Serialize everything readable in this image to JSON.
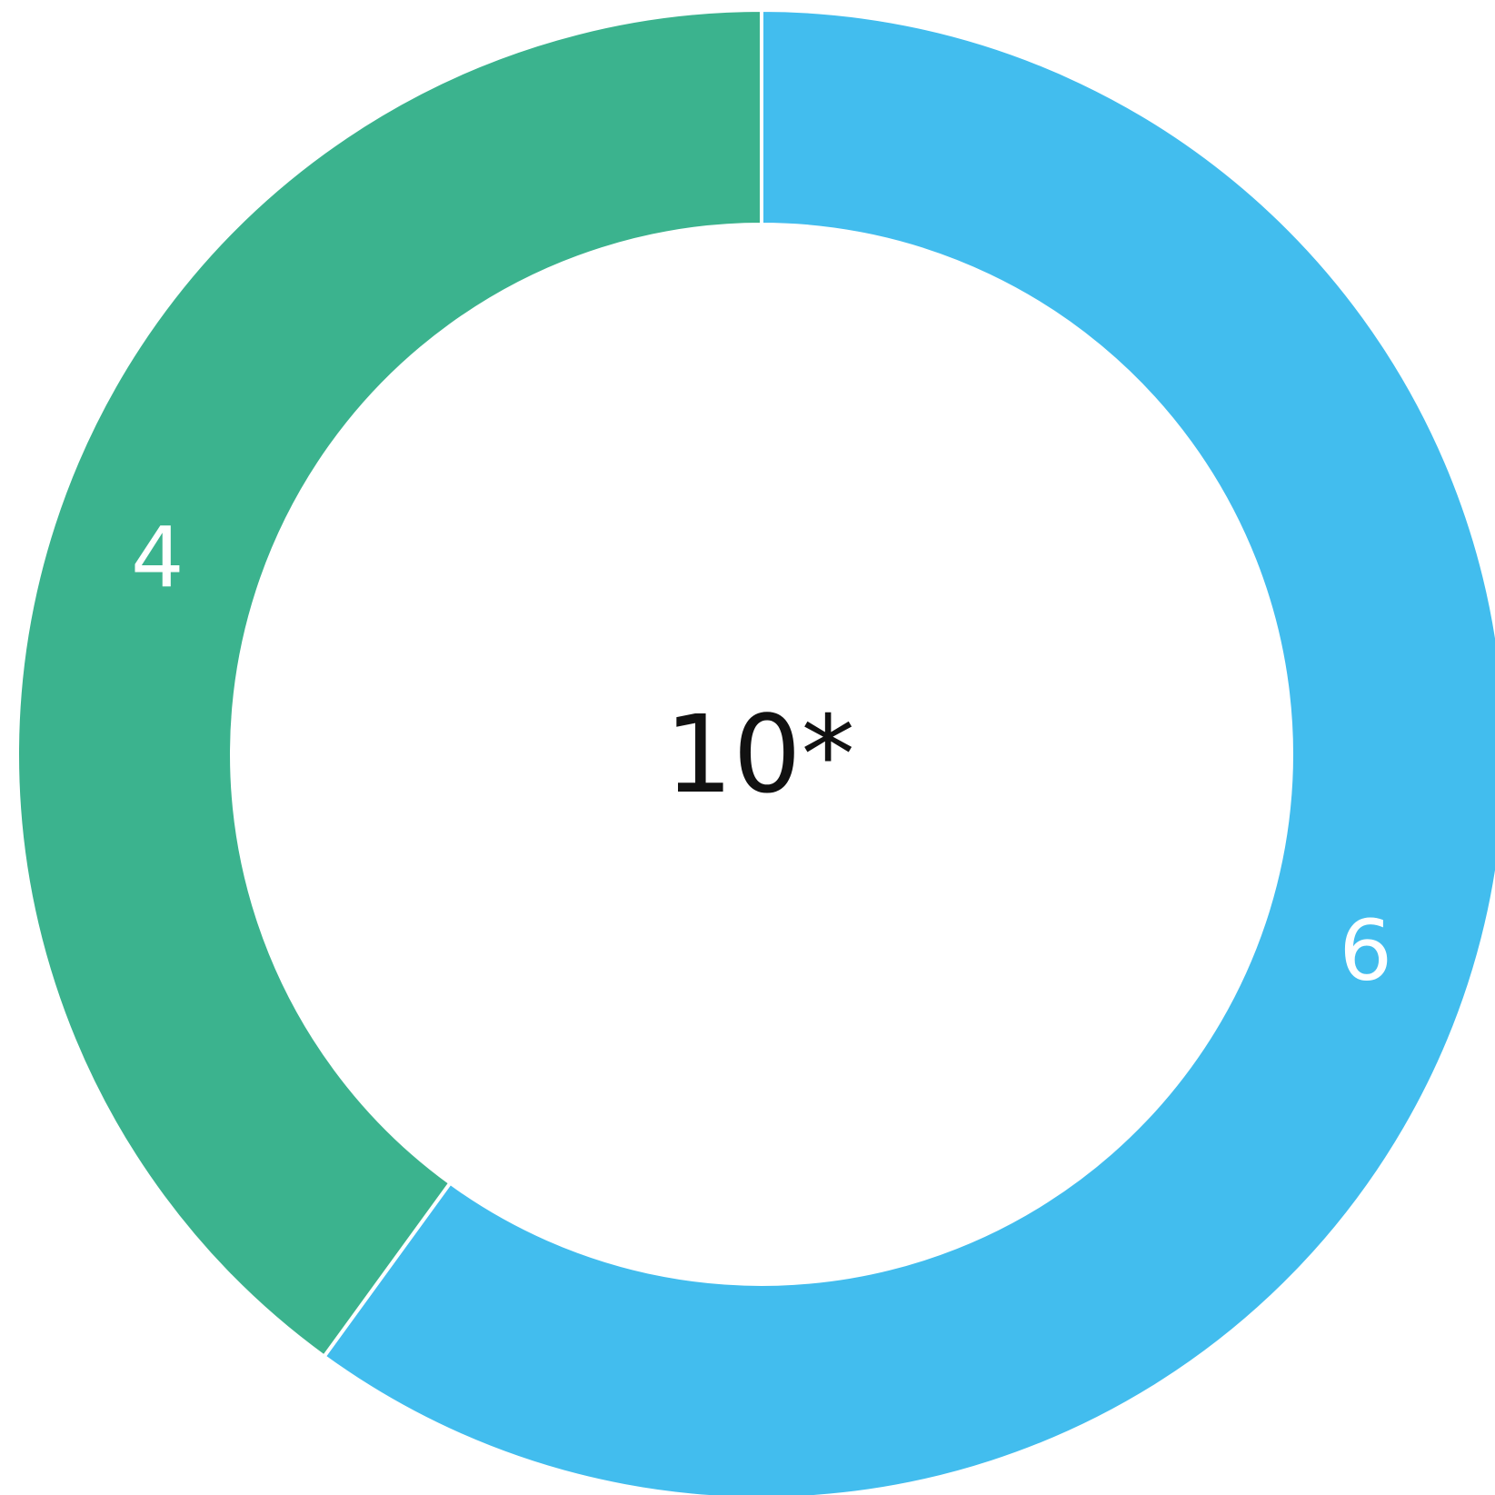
{
  "chart_data": {
    "type": "pie",
    "style": "donut",
    "slices": [
      {
        "value": 6,
        "label": "6",
        "color": "#42BDEE"
      },
      {
        "value": 4,
        "label": "4",
        "color": "#3BB38E"
      }
    ],
    "center_label": "10*",
    "start_angle_degrees": 0,
    "direction": "clockwise"
  }
}
